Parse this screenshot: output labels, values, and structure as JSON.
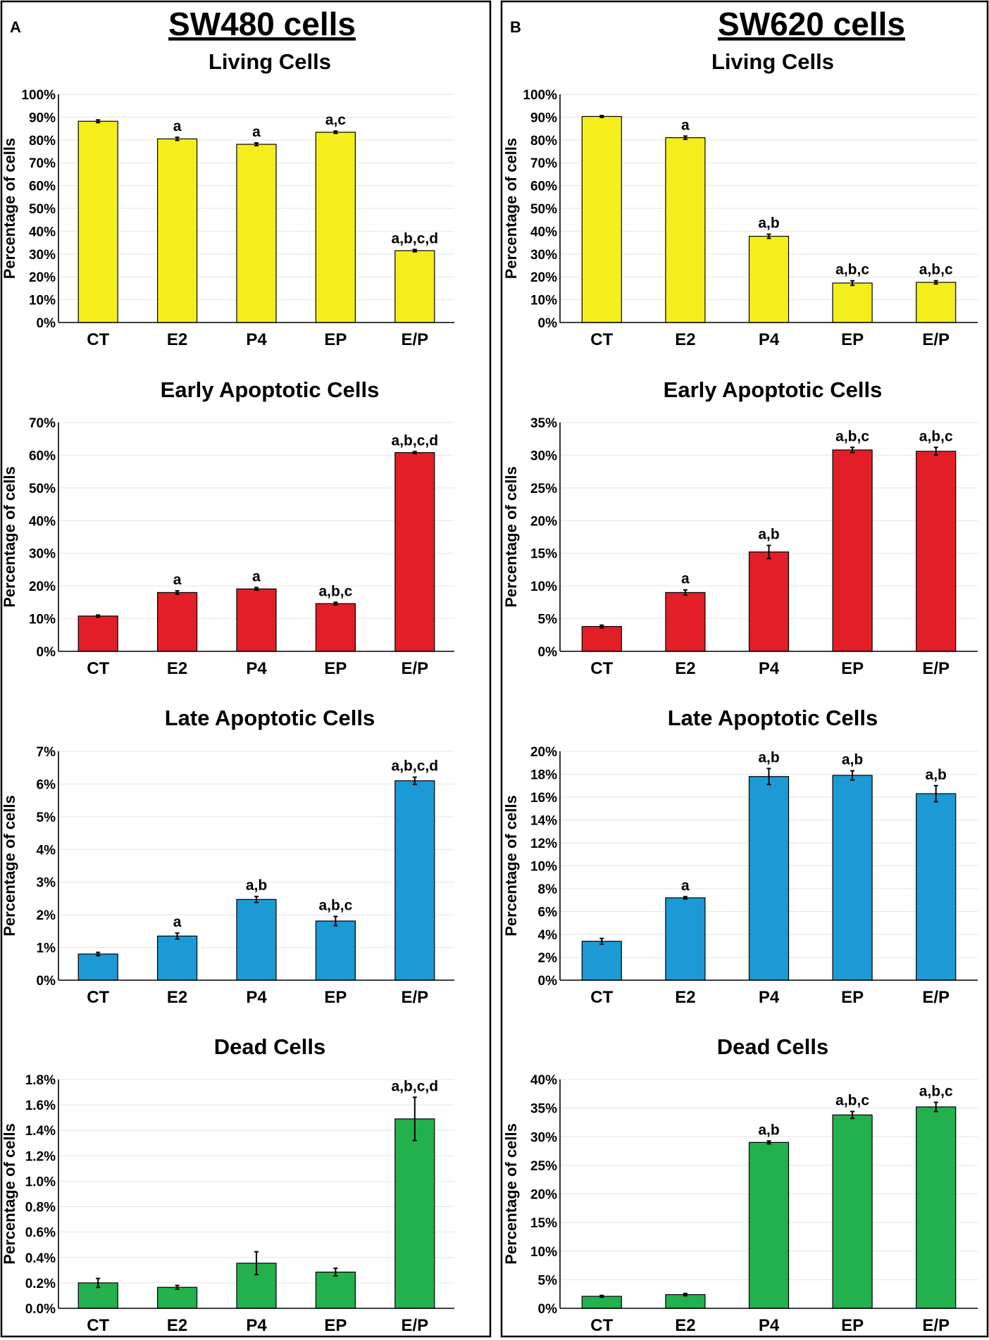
{
  "panels": [
    {
      "letter": "A",
      "title": "SW480 cells"
    },
    {
      "letter": "B",
      "title": "SW620 cells"
    }
  ],
  "colors": {
    "living": "#f4ee1c",
    "early": "#e21f26",
    "late": "#1c9ad6",
    "dead": "#22b14c"
  },
  "chart_data": [
    {
      "panel": "A",
      "type": "bar",
      "title": "Living Cells",
      "xlabel": "",
      "ylabel": "Percentage of cells",
      "categories": [
        "CT",
        "E2",
        "P4",
        "EP",
        "E/P"
      ],
      "values": [
        88.2,
        80.5,
        78.1,
        83.4,
        31.5
      ],
      "errors": [
        0.6,
        0.7,
        0.6,
        0.5,
        0.5
      ],
      "annotations": [
        "",
        "a",
        "a",
        "a,c",
        "a,b,c,d"
      ],
      "ylim": [
        0,
        100
      ],
      "yticks": [
        "0%",
        "10%",
        "20%",
        "30%",
        "40%",
        "50%",
        "60%",
        "70%",
        "80%",
        "90%",
        "100%"
      ],
      "color_key": "living"
    },
    {
      "panel": "B",
      "type": "bar",
      "title": "Living Cells",
      "xlabel": "",
      "ylabel": "Percentage of cells",
      "categories": [
        "CT",
        "E2",
        "P4",
        "EP",
        "E/P"
      ],
      "values": [
        90.3,
        81.0,
        37.8,
        17.3,
        17.6
      ],
      "errors": [
        0.4,
        0.7,
        0.9,
        1.0,
        0.7
      ],
      "annotations": [
        "",
        "a",
        "a,b",
        "a,b,c",
        "a,b,c"
      ],
      "ylim": [
        0,
        100
      ],
      "yticks": [
        "0%",
        "10%",
        "20%",
        "30%",
        "40%",
        "50%",
        "60%",
        "70%",
        "80%",
        "90%",
        "100%"
      ],
      "color_key": "living"
    },
    {
      "panel": "A",
      "type": "bar",
      "title": "Early Apoptotic Cells",
      "xlabel": "",
      "ylabel": "Percentage of cells",
      "categories": [
        "CT",
        "E2",
        "P4",
        "EP",
        "E/P"
      ],
      "values": [
        10.8,
        18.0,
        19.1,
        14.6,
        60.8
      ],
      "errors": [
        0.3,
        0.5,
        0.4,
        0.4,
        0.3
      ],
      "annotations": [
        "",
        "a",
        "a",
        "a,b,c",
        "a,b,c,d"
      ],
      "ylim": [
        0,
        70
      ],
      "yticks": [
        "0%",
        "10%",
        "20%",
        "30%",
        "40%",
        "50%",
        "60%",
        "70%"
      ],
      "color_key": "early"
    },
    {
      "panel": "B",
      "type": "bar",
      "title": "Early Apoptotic Cells",
      "xlabel": "",
      "ylabel": "Percentage of cells",
      "categories": [
        "CT",
        "E2",
        "P4",
        "EP",
        "E/P"
      ],
      "values": [
        3.8,
        9.0,
        15.2,
        30.8,
        30.6
      ],
      "errors": [
        0.2,
        0.4,
        1.0,
        0.4,
        0.6
      ],
      "annotations": [
        "",
        "a",
        "a,b",
        "a,b,c",
        "a,b,c"
      ],
      "ylim": [
        0,
        35
      ],
      "yticks": [
        "0%",
        "5%",
        "10%",
        "15%",
        "20%",
        "25%",
        "30%",
        "35%"
      ],
      "color_key": "early"
    },
    {
      "panel": "A",
      "type": "bar",
      "title": "Late Apoptotic Cells",
      "xlabel": "",
      "ylabel": "Percentage of cells",
      "categories": [
        "CT",
        "E2",
        "P4",
        "EP",
        "E/P"
      ],
      "values": [
        0.8,
        1.35,
        2.47,
        1.81,
        6.1
      ],
      "errors": [
        0.05,
        0.09,
        0.09,
        0.14,
        0.11
      ],
      "annotations": [
        "",
        "a",
        "a,b",
        "a,b,c",
        "a,b,c,d"
      ],
      "ylim": [
        0,
        7
      ],
      "yticks": [
        "0%",
        "1%",
        "2%",
        "3%",
        "4%",
        "5%",
        "6%",
        "7%"
      ],
      "color_key": "late"
    },
    {
      "panel": "B",
      "type": "bar",
      "title": "Late Apoptotic Cells",
      "xlabel": "",
      "ylabel": "Percentage of cells",
      "categories": [
        "CT",
        "E2",
        "P4",
        "EP",
        "E/P"
      ],
      "values": [
        3.4,
        7.2,
        17.8,
        17.9,
        16.3
      ],
      "errors": [
        0.25,
        0.1,
        0.7,
        0.4,
        0.7
      ],
      "annotations": [
        "",
        "a",
        "a,b",
        "a,b",
        "a,b"
      ],
      "ylim": [
        0,
        20
      ],
      "yticks": [
        "0%",
        "2%",
        "4%",
        "6%",
        "8%",
        "10%",
        "12%",
        "14%",
        "16%",
        "18%",
        "20%"
      ],
      "color_key": "late"
    },
    {
      "panel": "A",
      "type": "bar",
      "title": "Dead Cells",
      "xlabel": "",
      "ylabel": "Percentage of cells",
      "categories": [
        "CT",
        "E2",
        "P4",
        "EP",
        "E/P"
      ],
      "values": [
        0.2,
        0.165,
        0.355,
        0.285,
        1.49
      ],
      "errors": [
        0.035,
        0.015,
        0.09,
        0.03,
        0.17
      ],
      "annotations": [
        "",
        "",
        "",
        "",
        "a,b,c,d"
      ],
      "ylim": [
        0,
        1.8
      ],
      "yticks": [
        "0.0%",
        "0.2%",
        "0.4%",
        "0.6%",
        "0.8%",
        "1.0%",
        "1.2%",
        "1.4%",
        "1.6%",
        "1.8%"
      ],
      "color_key": "dead"
    },
    {
      "panel": "B",
      "type": "bar",
      "title": "Dead Cells",
      "xlabel": "",
      "ylabel": "Percentage of cells",
      "categories": [
        "CT",
        "E2",
        "P4",
        "EP",
        "E/P"
      ],
      "values": [
        2.1,
        2.4,
        29.0,
        33.8,
        35.2
      ],
      "errors": [
        0.15,
        0.2,
        0.25,
        0.6,
        0.8
      ],
      "annotations": [
        "",
        "",
        "a,b",
        "a,b,c",
        "a,b,c"
      ],
      "ylim": [
        0,
        40
      ],
      "yticks": [
        "0%",
        "5%",
        "10%",
        "15%",
        "20%",
        "25%",
        "30%",
        "35%",
        "40%"
      ],
      "color_key": "dead"
    }
  ]
}
